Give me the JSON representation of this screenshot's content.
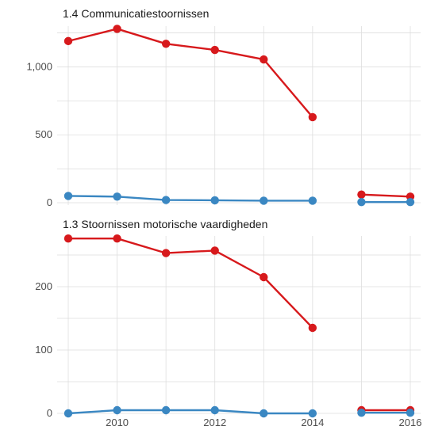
{
  "chart_data": [
    {
      "type": "line",
      "title": "1.4 Communicatiestoornissen",
      "x": [
        2009,
        2010,
        2011,
        2012,
        2013,
        2014,
        2015,
        2016
      ],
      "xticks": [
        2010,
        2012,
        2014,
        2016
      ],
      "yticks": [
        0,
        500,
        1000
      ],
      "ytick_labels": [
        "0",
        "500",
        "1,000"
      ],
      "ylim": [
        0,
        1300
      ],
      "xlim": [
        2009,
        2016
      ],
      "series": [
        {
          "color": "#d7191c",
          "values": [
            1190,
            1280,
            1170,
            1125,
            1055,
            630,
            null,
            null
          ]
        },
        {
          "color": "#d7191c",
          "values": [
            null,
            null,
            null,
            null,
            null,
            null,
            60,
            45
          ]
        },
        {
          "color": "#3a87c2",
          "values": [
            50,
            45,
            20,
            18,
            15,
            15,
            null,
            null
          ]
        },
        {
          "color": "#3a87c2",
          "values": [
            null,
            null,
            null,
            null,
            null,
            null,
            5,
            5
          ]
        }
      ]
    },
    {
      "type": "line",
      "title": "1.3 Stoornissen motorische vaardigheden",
      "x": [
        2009,
        2010,
        2011,
        2012,
        2013,
        2014,
        2015,
        2016
      ],
      "xticks": [
        2010,
        2012,
        2014,
        2016
      ],
      "yticks": [
        0,
        100,
        200
      ],
      "ytick_labels": [
        "0",
        "100",
        "200"
      ],
      "ylim": [
        0,
        280
      ],
      "xlim": [
        2009,
        2016
      ],
      "series": [
        {
          "color": "#d7191c",
          "values": [
            276,
            276,
            253,
            257,
            215,
            135,
            null,
            null
          ]
        },
        {
          "color": "#d7191c",
          "values": [
            null,
            null,
            null,
            null,
            null,
            null,
            5,
            5
          ]
        },
        {
          "color": "#3a87c2",
          "values": [
            0,
            5,
            5,
            5,
            0,
            0,
            null,
            null
          ]
        },
        {
          "color": "#3a87c2",
          "values": [
            null,
            null,
            null,
            null,
            null,
            null,
            1,
            1
          ]
        }
      ]
    }
  ]
}
